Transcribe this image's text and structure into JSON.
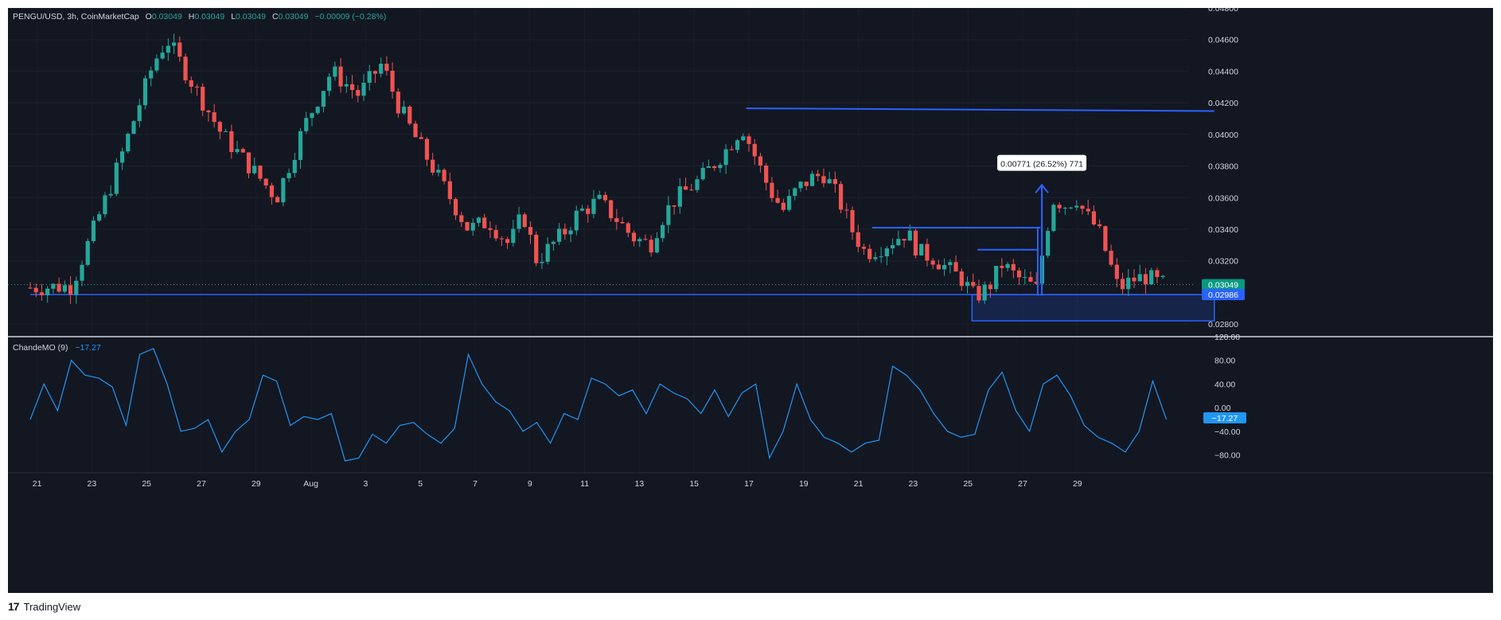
{
  "header": {
    "symbol": "PENGU/USD, 3h, CoinMarketCap",
    "o_label": "O",
    "o_value": "0.03049",
    "h_label": "H",
    "h_value": "0.03049",
    "l_label": "L",
    "l_value": "0.03049",
    "c_label": "C",
    "c_value": "0.03049",
    "change": "−0.00009 (−0.28%)"
  },
  "indicator": {
    "name": "ChandeMO (9)",
    "value": "−17.27"
  },
  "footer": {
    "logo": "17",
    "brand": "TradingView"
  },
  "colors": {
    "background": "#131722",
    "up": "#26a69a",
    "down": "#ef5350",
    "drawing": "#2962ff",
    "indicator_line": "#2196f3",
    "axis_text": "#d1d4dc"
  },
  "chart_data": [
    {
      "type": "candlestick",
      "title": "PENGU/USD, 3h, CoinMarketCap",
      "price_axis": {
        "ylim": [
          0.0272,
          0.048
        ],
        "ticks": [
          "0.04800",
          "0.04600",
          "0.04400",
          "0.04200",
          "0.04000",
          "0.03800",
          "0.03600",
          "0.03400",
          "0.03200",
          "0.02800"
        ]
      },
      "time_axis": {
        "labels": [
          "21",
          "23",
          "25",
          "27",
          "29",
          "Aug",
          "3",
          "5",
          "7",
          "9",
          "11",
          "13",
          "15",
          "17",
          "19",
          "21",
          "23",
          "25",
          "27",
          "29"
        ]
      },
      "close_path": [
        [
          0,
          0.0303
        ],
        [
          3,
          0.0304
        ],
        [
          6,
          0.037
        ],
        [
          9,
          0.0445
        ],
        [
          10,
          0.046
        ],
        [
          12,
          0.043
        ],
        [
          14,
          0.04
        ],
        [
          16,
          0.038
        ],
        [
          18,
          0.036
        ],
        [
          20,
          0.0405
        ],
        [
          22,
          0.044
        ],
        [
          24,
          0.0425
        ],
        [
          25.7,
          0.0445
        ],
        [
          26.8,
          0.042
        ],
        [
          28,
          0.04
        ],
        [
          30,
          0.037
        ],
        [
          32,
          0.034
        ],
        [
          33.5,
          0.0345
        ],
        [
          35,
          0.033
        ],
        [
          36,
          0.035
        ],
        [
          37,
          0.032
        ],
        [
          39,
          0.0338
        ],
        [
          40,
          0.035
        ],
        [
          41.5,
          0.0358
        ],
        [
          43,
          0.0345
        ],
        [
          44,
          0.0335
        ],
        [
          45.3,
          0.033
        ],
        [
          46,
          0.0345
        ],
        [
          47,
          0.0358
        ],
        [
          48,
          0.0365
        ],
        [
          49,
          0.0372
        ],
        [
          50,
          0.0382
        ],
        [
          51,
          0.0392
        ],
        [
          52,
          0.0405
        ],
        [
          53,
          0.0385
        ],
        [
          54,
          0.0365
        ],
        [
          55,
          0.0352
        ],
        [
          56,
          0.0365
        ],
        [
          57,
          0.0372
        ],
        [
          58,
          0.0375
        ],
        [
          59,
          0.036
        ],
        [
          60,
          0.034
        ],
        [
          61,
          0.0325
        ],
        [
          62,
          0.0328
        ],
        [
          63,
          0.0333
        ],
        [
          64,
          0.0338
        ],
        [
          65,
          0.0325
        ],
        [
          66,
          0.0322
        ],
        [
          67,
          0.0315
        ],
        [
          68,
          0.0309
        ],
        [
          69,
          0.0297
        ],
        [
          70,
          0.0303
        ],
        [
          71,
          0.0318
        ],
        [
          72,
          0.031
        ],
        [
          73,
          0.0305
        ],
        [
          73.5,
          0.0302
        ],
        [
          74.2,
          0.0338
        ],
        [
          74.8,
          0.036
        ],
        [
          75.5,
          0.0355
        ],
        [
          76.5,
          0.036
        ],
        [
          77,
          0.035
        ],
        [
          78,
          0.034
        ],
        [
          78.8,
          0.032
        ],
        [
          79.5,
          0.0302
        ],
        [
          80.5,
          0.0308
        ],
        [
          81.5,
          0.031
        ],
        [
          82.4,
          0.0306
        ],
        [
          83,
          0.0305
        ]
      ],
      "price_labels": [
        {
          "value": "0.03049",
          "color": "#089981"
        },
        {
          "value": "0.02986",
          "color": "#2962ff"
        }
      ],
      "drawings": [
        {
          "kind": "horizontal-ray",
          "from": [
            0,
            0.02986
          ],
          "to": [
            90,
            0.02986
          ]
        },
        {
          "kind": "trend-line",
          "from": [
            52.3,
            0.04165
          ],
          "to": [
            86.5,
            0.04148
          ]
        },
        {
          "kind": "horizontal-segment",
          "from": [
            61.5,
            0.0341
          ],
          "to": [
            73.8,
            0.0341
          ]
        },
        {
          "kind": "horizontal-segment",
          "from": [
            69.2,
            0.0327
          ],
          "to": [
            73.6,
            0.0327
          ]
        },
        {
          "kind": "vertical-segment",
          "from": [
            73.6,
            0.0298
          ],
          "to": [
            73.6,
            0.0341
          ]
        },
        {
          "kind": "vertical-segment",
          "from": [
            73.9,
            0.0327
          ],
          "to": [
            73.9,
            0.0366
          ]
        },
        {
          "kind": "range-box",
          "from": [
            68.8,
            0.02986
          ],
          "to": [
            86.5,
            0.0282
          ]
        },
        {
          "kind": "price-range-arrow",
          "from": [
            73.9,
            0.0298
          ],
          "to": [
            73.9,
            0.0368
          ]
        }
      ],
      "measure_label": {
        "text": "0.00771 (26.52%) 771",
        "at": [
          73.9,
          0.0381
        ]
      }
    },
    {
      "type": "line",
      "title": "ChandeMO (9)",
      "ylim": [
        -110,
        120
      ],
      "ticks": [
        "120.00",
        "80.00",
        "40.00",
        "0.00",
        "−40.00",
        "−80.00"
      ],
      "current_value": "−17.27",
      "x": [
        0,
        1,
        2,
        3,
        4,
        5,
        6,
        7,
        8,
        9,
        10,
        11,
        12,
        13,
        14,
        15,
        16,
        17,
        18,
        19,
        20,
        21,
        22,
        23,
        24,
        25,
        26,
        27,
        28,
        29,
        30,
        31,
        32,
        33,
        34,
        35,
        36,
        37,
        38,
        39,
        40,
        41,
        42,
        43,
        44,
        45,
        46,
        47,
        48,
        49,
        50,
        51,
        52,
        53,
        54,
        55,
        56,
        57,
        58,
        59,
        60,
        61,
        62,
        63,
        64,
        65,
        66,
        67,
        68,
        69,
        70,
        71,
        72,
        73,
        74,
        75,
        76,
        77,
        78,
        79,
        80,
        81,
        82,
        83
      ],
      "values": [
        -20,
        40,
        -5,
        80,
        55,
        50,
        35,
        -30,
        90,
        100,
        40,
        -40,
        -35,
        -20,
        -75,
        -40,
        -20,
        55,
        45,
        -30,
        -15,
        -20,
        -10,
        -90,
        -85,
        -45,
        -60,
        -30,
        -25,
        -45,
        -60,
        -35,
        90,
        40,
        10,
        -5,
        -40,
        -25,
        -60,
        -10,
        -20,
        50,
        40,
        20,
        30,
        -10,
        40,
        25,
        15,
        -10,
        30,
        -15,
        25,
        40,
        -85,
        -40,
        40,
        -20,
        -50,
        -60,
        -75,
        -60,
        -55,
        70,
        55,
        30,
        -10,
        -40,
        -50,
        -45,
        30,
        60,
        -5,
        -40,
        40,
        55,
        20,
        -30,
        -50,
        -60,
        -75,
        -40,
        45,
        -20
      ]
    }
  ]
}
